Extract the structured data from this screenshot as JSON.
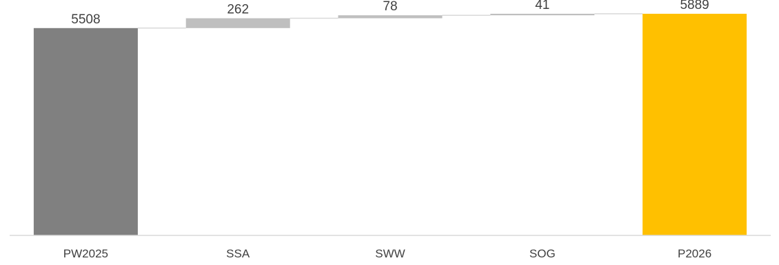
{
  "chart_data": {
    "type": "waterfall",
    "categories": [
      "PW2025",
      "SSA",
      "SWW",
      "SOG",
      "P2026"
    ],
    "values": [
      5508,
      262,
      78,
      41,
      5889
    ],
    "value_labels": [
      "5508",
      "262",
      "78",
      "41",
      "5889"
    ],
    "kinds": [
      "total",
      "increase",
      "increase",
      "increase",
      "total"
    ],
    "title": "",
    "xlabel": "",
    "ylabel": "",
    "ylim": [
      0,
      5889
    ],
    "grid": false,
    "legend": "none",
    "colors": {
      "start_total": "#808080",
      "increase": "#bfbfbf",
      "end_total": "#ffc000",
      "baseline": "#d9d9d9",
      "connector": "#d9d9d9",
      "text": "#404040"
    }
  }
}
